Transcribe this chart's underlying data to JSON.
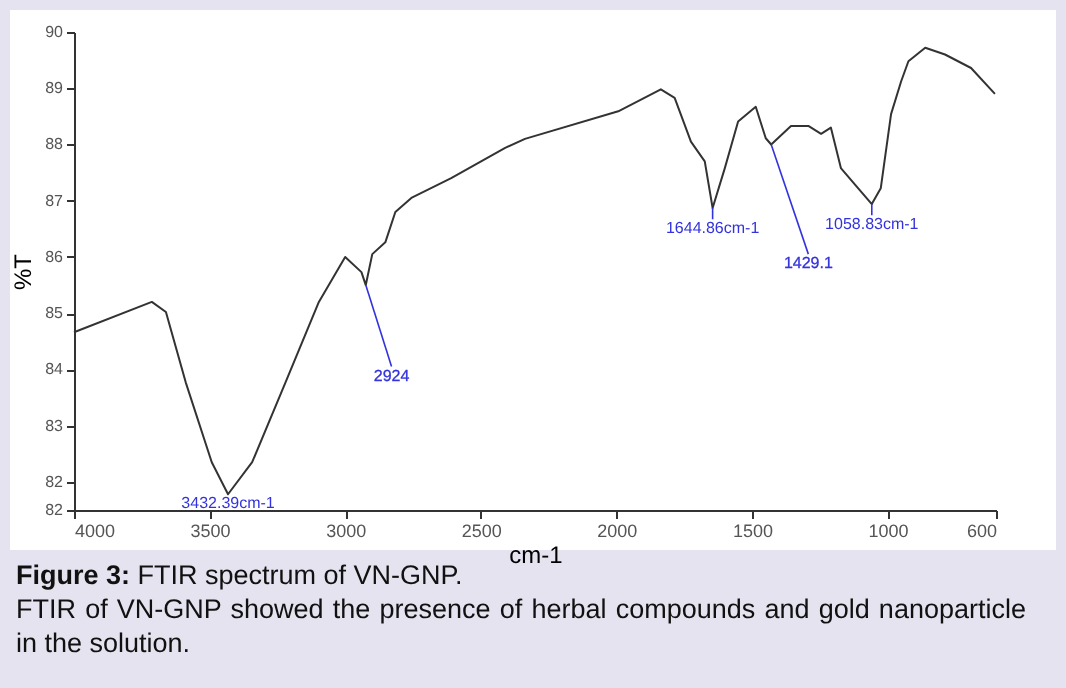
{
  "chart_data": {
    "type": "line",
    "title": "Figure 3: FTIR spectrum of VN-GNP.",
    "xlabel": "cm-1",
    "ylabel": "%T",
    "x": [
      4000,
      3713,
      3661,
      3588,
      3492,
      3432,
      3343,
      3220,
      3097,
      3000,
      2940,
      2924,
      2900,
      2852,
      2815,
      2756,
      2609,
      2410,
      2337,
      1993,
      1836,
      1785,
      1725,
      1674,
      1645,
      1600,
      1551,
      1486,
      1449,
      1429,
      1356,
      1292,
      1245,
      1209,
      1172,
      1108,
      1058,
      1025,
      987,
      950,
      923,
      861,
      788,
      692,
      604
    ],
    "series": [
      {
        "color": "#333333",
        "values": [
          84.66,
          85.2,
          85.02,
          83.77,
          82.35,
          81.78,
          82.35,
          83.77,
          85.2,
          86.0,
          85.73,
          85.5,
          86.05,
          86.26,
          86.8,
          87.05,
          87.4,
          87.94,
          88.1,
          88.59,
          88.98,
          88.83,
          88.05,
          87.7,
          86.87,
          87.58,
          88.41,
          88.67,
          88.11,
          88.0,
          88.33,
          88.33,
          88.19,
          88.3,
          87.58,
          87.22,
          86.94,
          87.22,
          88.54,
          89.12,
          89.48,
          89.72,
          89.6,
          89.36,
          88.9
        ]
      }
    ],
    "xlim": [
      4000,
      600
    ],
    "xticks": [
      4000,
      3500,
      3000,
      2500,
      2000,
      1500,
      1000,
      600
    ],
    "ylim": [
      81.5,
      90
    ],
    "yticks": [
      {
        "value": 81.5,
        "label": "82"
      },
      82,
      83,
      84,
      85,
      86,
      87,
      88,
      89,
      90
    ],
    "grid": false,
    "annotations": [
      {
        "text": "3432.39cm-1",
        "x": 3432,
        "y": 81.78
      },
      {
        "text": "2924",
        "x": 2924,
        "y": 85.5
      },
      {
        "text": "1644.86cm-1",
        "x": 1645,
        "y": 86.87
      },
      {
        "text": "1429.1",
        "x": 1429,
        "y": 88.0
      },
      {
        "text": "1058.83cm-1",
        "x": 1058,
        "y": 86.94
      },
      "FTIR of VN-GNP showed the presence of herbal compounds and gold nanoparticle in the solution."
    ]
  }
}
